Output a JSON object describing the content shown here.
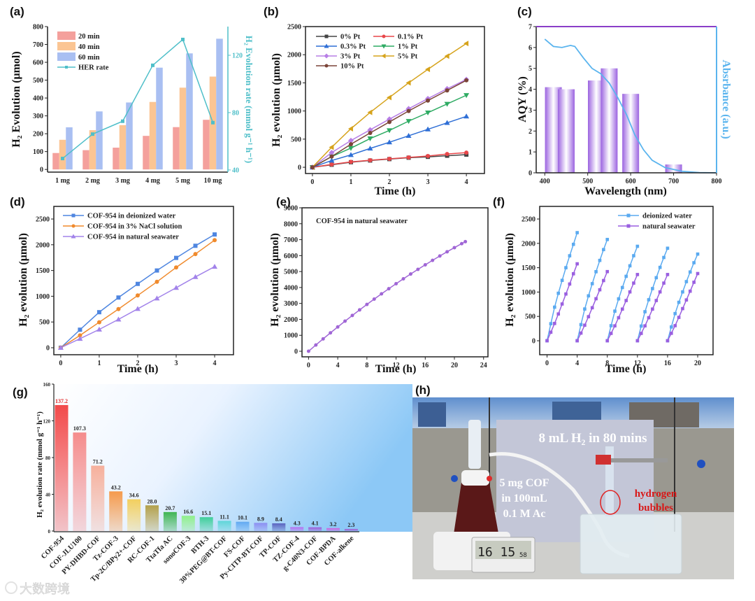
{
  "panel_labels": {
    "a": "(a)",
    "b": "(b)",
    "c": "(c)",
    "d": "(d)",
    "e": "(e)",
    "f": "(f)",
    "g": "(g)",
    "h": "(h)"
  },
  "watermark": "大数跨境",
  "chart_data": [
    {
      "id": "a",
      "type": "bar",
      "categories": [
        "1 mg",
        "2 mg",
        "3 mg",
        "4 mg",
        "5 mg",
        "10 mg"
      ],
      "series": [
        {
          "name": "20 min",
          "values": [
            92,
            108,
            122,
            188,
            237,
            278
          ],
          "color": "#f4a09c"
        },
        {
          "name": "40 min",
          "values": [
            166,
            220,
            248,
            378,
            458,
            520
          ],
          "color": "#fbc593"
        },
        {
          "name": "60 min",
          "values": [
            236,
            325,
            375,
            570,
            650,
            732
          ],
          "color": "#a9bff2"
        }
      ],
      "line_series": {
        "name": "HER rate",
        "axis": "right",
        "values": [
          48,
          65,
          74,
          113,
          131,
          73
        ],
        "color": "#4fbfc9"
      },
      "ylabel": "H₂ Evolution (μmol)",
      "ylabel_right": "H₂ Evolution rate (mmol g⁻¹ h⁻¹)",
      "ylim": [
        0,
        800
      ],
      "yticks": [
        0,
        100,
        200,
        300,
        400,
        500,
        600,
        700,
        800
      ],
      "ylim_right": [
        40,
        140
      ],
      "yticks_right": [
        40,
        80,
        120
      ],
      "legend": "top-left"
    },
    {
      "id": "b",
      "type": "line",
      "x": [
        0,
        0.5,
        1,
        1.5,
        2,
        2.5,
        3,
        3.5,
        4
      ],
      "series": [
        {
          "name": "0% Pt",
          "marker": "square",
          "color": "#444444",
          "values": [
            0,
            45,
            90,
            120,
            145,
            170,
            185,
            205,
            225
          ]
        },
        {
          "name": "0.1% Pt",
          "marker": "circle",
          "color": "#e8474a",
          "values": [
            0,
            50,
            95,
            125,
            150,
            175,
            200,
            235,
            260
          ]
        },
        {
          "name": "0.3% Pt",
          "marker": "triangle",
          "color": "#2f6fd6",
          "values": [
            0,
            120,
            220,
            335,
            445,
            560,
            675,
            790,
            905
          ]
        },
        {
          "name": "1%  Pt",
          "marker": "triangle-down",
          "color": "#2eab63",
          "values": [
            0,
            190,
            340,
            510,
            655,
            820,
            970,
            1125,
            1280
          ]
        },
        {
          "name": "3%  Pt",
          "marker": "diamond",
          "color": "#b77ee6",
          "values": [
            0,
            260,
            475,
            665,
            855,
            1040,
            1220,
            1395,
            1560
          ]
        },
        {
          "name": "5%  Pt",
          "marker": "triangle-left",
          "color": "#d6a31c",
          "values": [
            0,
            355,
            685,
            975,
            1240,
            1500,
            1740,
            1975,
            2200
          ]
        },
        {
          "name": "10% Pt",
          "marker": "circle",
          "color": "#7b4438",
          "values": [
            0,
            190,
            410,
            610,
            805,
            1000,
            1185,
            1365,
            1545
          ]
        }
      ],
      "xlabel": "Time (h)",
      "ylabel": "H₂ evolution (μmol)",
      "xlim": [
        0,
        4
      ],
      "ylim": [
        0,
        2500
      ],
      "xticks": [
        0,
        1,
        2,
        3,
        4
      ],
      "yticks": [
        0,
        500,
        1000,
        1500,
        2000,
        2500
      ],
      "legend": "top-left"
    },
    {
      "id": "c",
      "type": "bar",
      "bars": {
        "x": [
          420,
          450,
          520,
          550,
          600,
          700
        ],
        "values": [
          4.1,
          4.0,
          4.42,
          5.0,
          3.78,
          0.4
        ],
        "color": "#9b63e0"
      },
      "absorbance_curve": {
        "x": [
          400,
          420,
          440,
          460,
          470,
          490,
          510,
          530,
          550,
          570,
          590,
          610,
          630,
          650,
          680,
          720,
          760,
          800
        ],
        "values": [
          6.4,
          6.05,
          6.0,
          6.1,
          6.05,
          5.5,
          5.0,
          4.75,
          4.3,
          3.6,
          2.8,
          1.8,
          1.1,
          0.6,
          0.25,
          0.07,
          0.01,
          0
        ],
        "color": "#5ab4ee"
      },
      "xlabel": "Wavelength (nm)",
      "ylabel": "AQY (%)",
      "ylabel_right": "Absrbance (a.u.)",
      "xlim": [
        380,
        800
      ],
      "ylim": [
        0,
        7
      ],
      "xticks": [
        400,
        500,
        600,
        700,
        800
      ],
      "yticks": [
        0,
        1,
        2,
        3,
        4,
        5,
        6,
        7
      ]
    },
    {
      "id": "d",
      "type": "line",
      "x": [
        0,
        0.5,
        1,
        1.5,
        2,
        2.5,
        3,
        3.5,
        4
      ],
      "series": [
        {
          "name": "COF-954  in deionized water",
          "marker": "square",
          "color": "#4f86e0",
          "values": [
            0,
            350,
            690,
            975,
            1240,
            1500,
            1745,
            1980,
            2200
          ]
        },
        {
          "name": "COF-954  in 3% NaCl solution",
          "marker": "circle",
          "color": "#f08a2c",
          "values": [
            0,
            240,
            495,
            750,
            1015,
            1280,
            1560,
            1820,
            2090
          ]
        },
        {
          "name": "COF-954  in natural seawater",
          "marker": "triangle",
          "color": "#a283ea",
          "values": [
            0,
            175,
            355,
            550,
            755,
            960,
            1165,
            1375,
            1575
          ]
        }
      ],
      "xlabel": "Time (h)",
      "ylabel": "H₂ evolution (μmol)",
      "xlim": [
        0,
        4
      ],
      "ylim": [
        0,
        2500
      ],
      "xticks": [
        0,
        1,
        2,
        3,
        4
      ],
      "yticks": [
        0,
        500,
        1000,
        1500,
        2000,
        2500
      ],
      "legend": "top-left"
    },
    {
      "id": "e",
      "type": "line",
      "annotation": "COF-954 in natural seawater",
      "x": [
        0,
        1,
        2,
        3,
        4,
        5,
        6,
        7,
        8,
        9,
        10,
        11,
        12,
        13,
        14,
        15,
        16,
        17,
        18,
        19,
        20,
        21,
        21.5
      ],
      "series": [
        {
          "name": "COF-954 in natural seawater",
          "marker": "circle",
          "color": "#a066d6",
          "values": [
            0,
            392,
            777,
            1154,
            1524,
            1888,
            2244,
            2594,
            2936,
            3272,
            3600,
            3922,
            4236,
            4544,
            4844,
            5138,
            5424,
            5704,
            5976,
            6242,
            6500,
            6752,
            6875
          ]
        }
      ],
      "xlabel": "Time (h)",
      "ylabel": "H₂ evolution (μmol)",
      "xlim": [
        0,
        24
      ],
      "ylim": [
        0,
        9000
      ],
      "xticks": [
        0,
        4,
        8,
        12,
        16,
        20,
        24
      ],
      "yticks": [
        0,
        1000,
        2000,
        3000,
        4000,
        5000,
        6000,
        7000,
        8000,
        9000
      ]
    },
    {
      "id": "f",
      "type": "line",
      "cycle_x": [
        0,
        0.5,
        1,
        1.5,
        2,
        2.5,
        3,
        3.5,
        4
      ],
      "cycle_starts": [
        0,
        4,
        8,
        12,
        16
      ],
      "series": [
        {
          "name": "deionized water",
          "marker": "square",
          "color": "#5aaaf0",
          "cycles": [
            [
              0,
              350,
              690,
              975,
              1240,
              1500,
              1745,
              1980,
              2220
            ],
            [
              0,
              331,
              652,
              922,
              1172,
              1418,
              1650,
              1872,
              2080
            ],
            [
              0,
              309,
              608,
              860,
              1093,
              1323,
              1539,
              1746,
              1940
            ],
            [
              0,
              302,
              596,
              842,
              1071,
              1295,
              1507,
              1710,
              1900
            ],
            [
              0,
              283,
              558,
              789,
              1003,
              1214,
              1412,
              1602,
              1780
            ]
          ]
        },
        {
          "name": "natural seawater",
          "marker": "square",
          "color": "#9a5fe0",
          "cycles": [
            [
              0,
              175,
              355,
              550,
              755,
              960,
              1165,
              1375,
              1580
            ],
            [
              0,
              157,
              319,
              494,
              678,
              863,
              1047,
              1236,
              1420
            ],
            [
              0,
              151,
              306,
              473,
              650,
              826,
              1003,
              1184,
              1360
            ],
            [
              0,
              151,
              306,
              473,
              650,
              826,
              1003,
              1184,
              1360
            ],
            [
              0,
              153,
              310,
              480,
              660,
              838,
              1018,
              1201,
              1380
            ]
          ]
        }
      ],
      "xlabel": "Time (h)",
      "ylabel": "H₂ evolution (μmol)",
      "xlim": [
        0,
        20
      ],
      "ylim": [
        0,
        2500
      ],
      "xticks": [
        0,
        4,
        8,
        12,
        16,
        20
      ],
      "yticks": [
        0,
        500,
        1000,
        1500,
        2000,
        2500
      ],
      "legend": "top-right"
    },
    {
      "id": "g",
      "type": "bar",
      "categories": [
        "COF-954",
        "COF-JLU100",
        "PY-DHBD-COF",
        "Tz-COF-3",
        "Tp-2C/BPy2+-COF",
        "RC-COF-1",
        "TtaTfa AC",
        "sonoCOF-3",
        "BTH-3",
        "30%PEG@BT-COF",
        "FS-COF",
        "Py-CITP-BT-COF",
        "TP-COF",
        "TZ-COF-4",
        "g-C40N3-COF",
        "COF-BPDA",
        "COF-alkene"
      ],
      "values": [
        137.2,
        107.3,
        71.2,
        43.2,
        34.6,
        28.0,
        20.7,
        16.6,
        15.1,
        11.1,
        10.1,
        8.9,
        8.4,
        4.3,
        4.1,
        3.2,
        2.3
      ],
      "value_labels": [
        "137.2",
        "107.3",
        "71.2",
        "43.2",
        "34.6",
        "28.0",
        "20.7",
        "16.6",
        "15.1",
        "11.1",
        "10.1",
        "8.9",
        "8.4",
        "4.3",
        "4.1",
        "3.2",
        "2.3"
      ],
      "colors": [
        "#f24a4a",
        "#f58c8c",
        "#f6b09c",
        "#f59a4c",
        "#f2cf5e",
        "#b3a04a",
        "#3fb553",
        "#8ff08a",
        "#3fcf9a",
        "#5fd6d8",
        "#62aaf2",
        "#8c8ef2",
        "#5a64c0",
        "#b86ef0",
        "#a05ad8",
        "#d060e0",
        "#a25ad0"
      ],
      "highlight_color": "#e02020",
      "ylabel": "H₂ evolution rate (mmol g⁻¹ h⁻¹)",
      "ylim": [
        0,
        160
      ],
      "yticks": [
        0,
        40,
        80,
        120,
        160
      ]
    }
  ],
  "photo": {
    "title": "8 mL H₂ in 80 mins",
    "conditions": [
      "5 mg COF",
      "in 100mL",
      "0.1 M Ac"
    ],
    "bubbles": [
      "hydrogen",
      "bubbles"
    ],
    "clock": {
      "time": "16 15",
      "seconds": "58"
    }
  }
}
